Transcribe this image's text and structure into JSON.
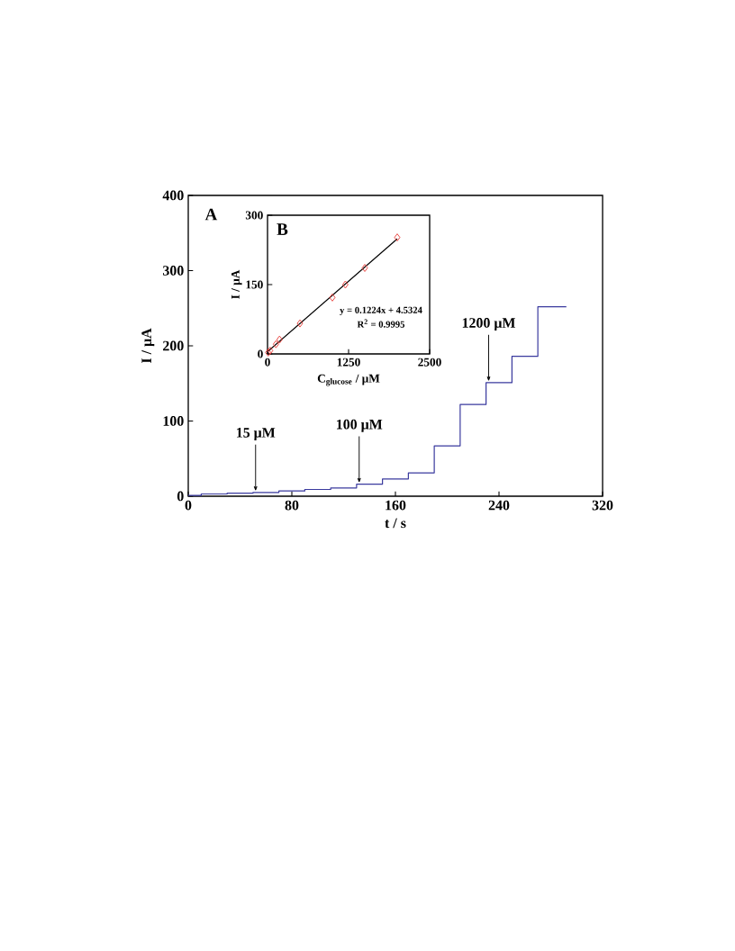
{
  "chart_data": [
    {
      "type": "step",
      "xlabel": "t / s",
      "ylabel": "I / μA",
      "color": "#3a3a9e",
      "x": [
        0,
        10,
        30,
        50,
        70,
        90,
        110,
        130,
        150,
        170,
        190,
        210,
        230,
        250,
        270,
        292
      ],
      "values": [
        1,
        3,
        4,
        5,
        7,
        9,
        11,
        16,
        23,
        31,
        67,
        122,
        151,
        186,
        252,
        252
      ],
      "xlim": [
        0,
        320
      ],
      "xticks": [
        0,
        80,
        160,
        240,
        320
      ],
      "ylim": [
        0,
        400
      ],
      "yticks": [
        0,
        100,
        200,
        300,
        400
      ],
      "annotations": [
        "A",
        {
          "text": "15 μM",
          "x": 52,
          "y": 5
        },
        {
          "text": "100 μM",
          "x": 132,
          "y": 16
        },
        {
          "text": "1200 μM",
          "x": 232,
          "y": 151
        }
      ]
    },
    {
      "type": "scatter",
      "xlabel": "C$_{glucose}$ / μM",
      "ylabel": "I / μA",
      "series": [
        {
          "type": "scatter",
          "marker": "diamond",
          "color": "#e8413c",
          "x": [
            10,
            40,
            130,
            185,
            500,
            1000,
            1200,
            1500,
            2000
          ],
          "values": [
            3,
            7,
            21,
            31,
            66,
            122,
            150,
            186,
            252
          ]
        },
        {
          "type": "line",
          "marker": "none",
          "color": "#000000",
          "x": [
            0,
            2000
          ],
          "values": [
            5,
            249
          ]
        }
      ],
      "xlim": [
        0,
        2500
      ],
      "xticks": [
        0,
        1250,
        2500
      ],
      "ylim": [
        0,
        300
      ],
      "yticks": [
        0,
        150,
        300
      ],
      "annotations": [
        "B",
        "y = 0.1224x + 4.5324",
        "R$^{2}$ = 0.9995"
      ]
    }
  ]
}
